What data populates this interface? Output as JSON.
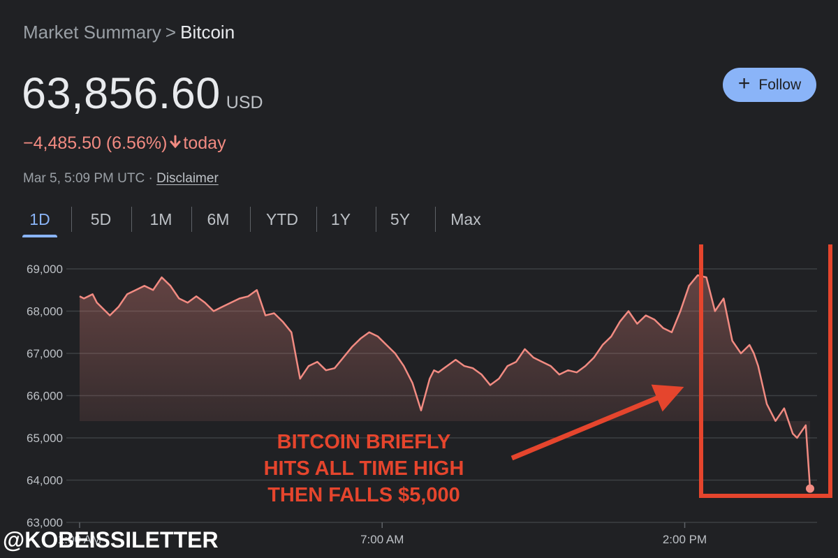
{
  "breadcrumb": {
    "parent": "Market Summary",
    "separator": ">",
    "current": "Bitcoin"
  },
  "quote": {
    "price": "63,856.60",
    "currency": "USD",
    "change": "−4,485.50 (6.56%)",
    "change_suffix": "today",
    "timestamp": "Mar 5, 5:09 PM UTC",
    "meta_separator": "·",
    "disclaimer": "Disclaimer"
  },
  "follow_button": {
    "label": "Follow",
    "icon": "plus-icon"
  },
  "ranges": [
    "1D",
    "5D",
    "1M",
    "6M",
    "YTD",
    "1Y",
    "5Y",
    "Max"
  ],
  "selected_range": "1D",
  "colors": {
    "background": "#202124",
    "line": "#f28b82",
    "accent": "#8ab4f8",
    "annotation": "#e5452d",
    "tab_text": "#bdc1c6"
  },
  "chart_data": {
    "type": "line",
    "title": "",
    "xlabel": "",
    "ylabel": "",
    "ylim": [
      63000,
      69000
    ],
    "yticks": [
      69000,
      68000,
      67000,
      66000,
      65000,
      64000,
      63000
    ],
    "ytick_labels": [
      "69,000",
      "68,000",
      "67,000",
      "66,000",
      "65,000",
      "64,000",
      "63,000"
    ],
    "xticks": [
      1,
      8,
      15
    ],
    "xtick_labels": [
      "1:00 AM",
      "7:00 AM",
      "2:00 PM"
    ],
    "xlim": [
      1,
      17.9
    ],
    "grid": true,
    "series": [
      {
        "x": [
          1.0,
          1.1,
          1.3,
          1.4,
          1.7,
          1.9,
          2.1,
          2.3,
          2.5,
          2.7,
          2.9,
          3.1,
          3.3,
          3.5,
          3.7,
          3.9,
          4.1,
          4.3,
          4.5,
          4.7,
          4.9,
          5.1,
          5.3,
          5.5,
          5.7,
          5.9,
          6.1,
          6.3,
          6.5,
          6.7,
          6.9,
          7.1,
          7.3,
          7.5,
          7.7,
          7.9,
          8.1,
          8.3,
          8.5,
          8.7,
          8.9,
          9.1,
          9.2,
          9.3,
          9.5,
          9.7,
          9.9,
          10.1,
          10.3,
          10.5,
          10.7,
          10.9,
          11.1,
          11.3,
          11.5,
          11.7,
          11.9,
          12.1,
          12.3,
          12.5,
          12.7,
          12.9,
          13.1,
          13.3,
          13.5,
          13.7,
          13.9,
          14.1,
          14.3,
          14.5,
          14.7,
          14.9,
          15.1,
          15.3,
          15.5,
          15.7,
          15.9,
          16.1,
          16.3,
          16.5,
          16.6,
          16.7,
          16.9,
          17.1,
          17.3,
          17.5,
          17.6,
          17.8,
          17.9
        ],
        "y": [
          68350,
          68300,
          68400,
          68200,
          67900,
          68100,
          68400,
          68500,
          68600,
          68500,
          68800,
          68600,
          68300,
          68200,
          68350,
          68200,
          68000,
          68100,
          68200,
          68300,
          68350,
          68500,
          67900,
          67950,
          67750,
          67500,
          66400,
          66700,
          66800,
          66600,
          66650,
          66900,
          67150,
          67350,
          67500,
          67400,
          67200,
          67000,
          66700,
          66300,
          65650,
          66400,
          66600,
          66550,
          66700,
          66850,
          66700,
          66650,
          66500,
          66250,
          66400,
          66700,
          66800,
          67100,
          66900,
          66800,
          66700,
          66500,
          66600,
          66550,
          66700,
          66900,
          67200,
          67400,
          67750,
          68000,
          67700,
          67900,
          67800,
          67600,
          67500,
          68000,
          68600,
          68850,
          68800,
          68000,
          68300,
          67300,
          67000,
          67200,
          67000,
          66700,
          65800,
          65400,
          65700,
          65100,
          65000,
          65300,
          63800
        ]
      }
    ],
    "annotation": [
      "BITCOIN BRIEFLY",
      "HITS ALL TIME HIGH",
      "THEN FALLS $5,000"
    ]
  },
  "watermark": "@KOBEISSILETTER"
}
